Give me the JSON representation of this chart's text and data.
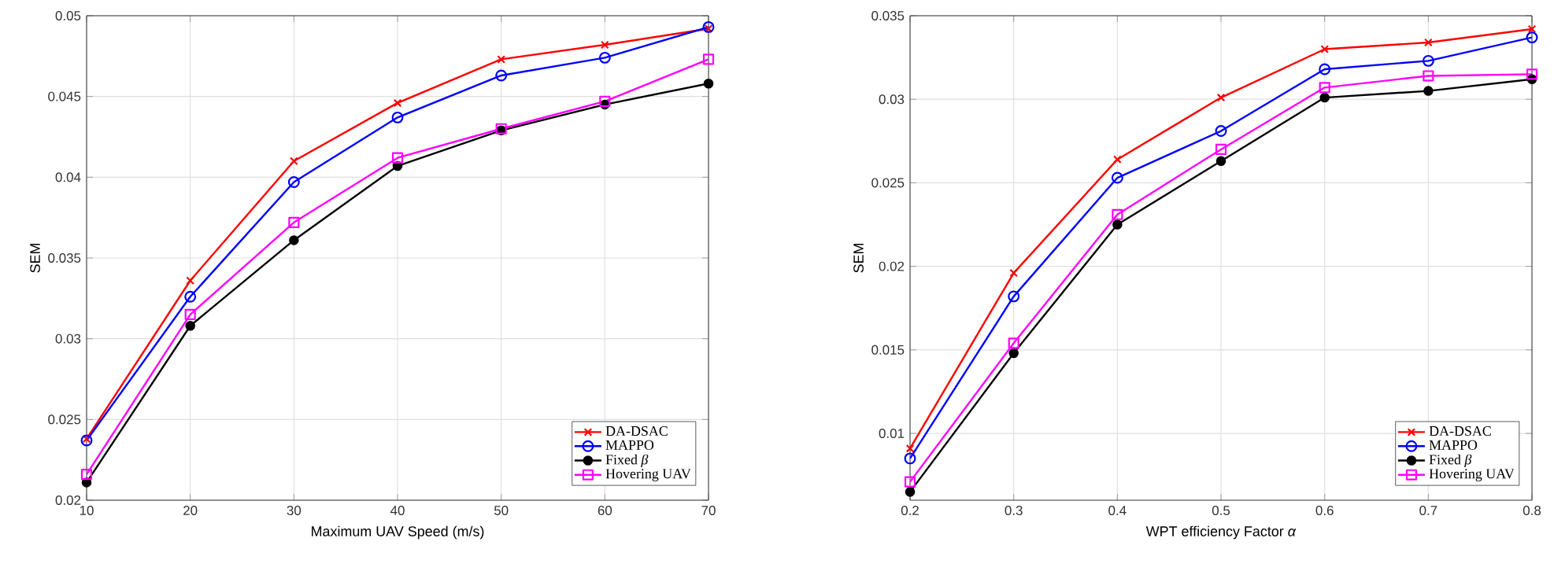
{
  "chart_data": [
    {
      "type": "line",
      "xlabel": "Maximum UAV Speed (m/s)",
      "ylabel": "SEM",
      "x": [
        10,
        20,
        30,
        40,
        50,
        60,
        70
      ],
      "xlim": [
        10,
        70
      ],
      "xticks": [
        10,
        20,
        30,
        40,
        50,
        60,
        70
      ],
      "ylim": [
        0.02,
        0.05
      ],
      "yticks": [
        0.02,
        0.025,
        0.03,
        0.035,
        0.04,
        0.045,
        0.05
      ],
      "grid": true,
      "legend": "bottom right",
      "line_style": "solid",
      "series": [
        {
          "name": "DA-DSAC",
          "color": "#ff0000",
          "marker": "cross",
          "values": [
            0.0238,
            0.0336,
            0.041,
            0.0446,
            0.0473,
            0.0482,
            0.0492
          ]
        },
        {
          "name": "MAPPO",
          "color": "#0000ff",
          "marker": "circle",
          "values": [
            0.0237,
            0.0326,
            0.0397,
            0.0437,
            0.0463,
            0.0474,
            0.0493
          ]
        },
        {
          "name": "Fixed *β*",
          "color": "#000000",
          "marker": "filled circle",
          "values": [
            0.0211,
            0.0308,
            0.0361,
            0.0407,
            0.0429,
            0.0445,
            0.0458
          ]
        },
        {
          "name": "Hovering UAV",
          "color": "#ff00ff",
          "marker": "square",
          "values": [
            0.0216,
            0.0315,
            0.0372,
            0.0412,
            0.043,
            0.0447,
            0.0473
          ]
        }
      ]
    },
    {
      "type": "line",
      "xlabel": "WPT efficiency Factor *α*",
      "ylabel": "SEM",
      "x": [
        0.2,
        0.3,
        0.4,
        0.5,
        0.6,
        0.7,
        0.8
      ],
      "xlim": [
        0.2,
        0.8
      ],
      "xticks": [
        0.2,
        0.3,
        0.4,
        0.5,
        0.6,
        0.7,
        0.8
      ],
      "ylim": [
        0.006,
        0.035
      ],
      "yticks": [
        0.01,
        0.015,
        0.02,
        0.025,
        0.03,
        0.035
      ],
      "grid": true,
      "legend": "bottom right",
      "line_style": "solid",
      "series": [
        {
          "name": "DA-DSAC",
          "color": "#ff0000",
          "marker": "cross",
          "values": [
            0.0091,
            0.0196,
            0.0264,
            0.0301,
            0.033,
            0.0334,
            0.0342
          ]
        },
        {
          "name": "MAPPO",
          "color": "#0000ff",
          "marker": "circle",
          "values": [
            0.0085,
            0.0182,
            0.0253,
            0.0281,
            0.0318,
            0.0323,
            0.0337
          ]
        },
        {
          "name": "Fixed *β*",
          "color": "#000000",
          "marker": "filled circle",
          "values": [
            0.0065,
            0.0148,
            0.0225,
            0.0263,
            0.0301,
            0.0305,
            0.0312
          ]
        },
        {
          "name": "Hovering UAV",
          "color": "#ff00ff",
          "marker": "square",
          "values": [
            0.0071,
            0.0154,
            0.0231,
            0.027,
            0.0307,
            0.0314,
            0.0315
          ]
        }
      ]
    }
  ]
}
